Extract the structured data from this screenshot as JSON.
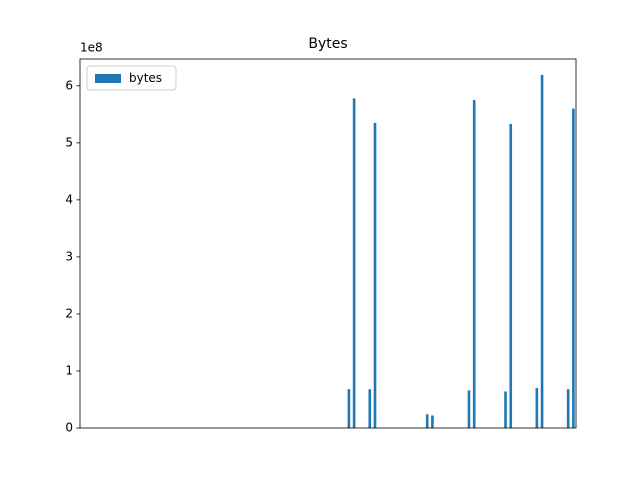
{
  "chart_data": {
    "type": "bar",
    "title": "Bytes",
    "categories": [
      null,
      null,
      null,
      null,
      null,
      null,
      null,
      null,
      null,
      null,
      null,
      null,
      null,
      null,
      null,
      null,
      null,
      null,
      null,
      null,
      null,
      null,
      null,
      null,
      null,
      null,
      null,
      null,
      null,
      null,
      null,
      null,
      null,
      null,
      null,
      null,
      null,
      null,
      null,
      null,
      null,
      null,
      null,
      null,
      null,
      null,
      null,
      null,
      null,
      null,
      null,
      null,
      null,
      null,
      null,
      null,
      null,
      null,
      null,
      null,
      null,
      null,
      null,
      null,
      null,
      null,
      null,
      null,
      null,
      null,
      null,
      null,
      null,
      null,
      null,
      null,
      null,
      null,
      null,
      null,
      null,
      null,
      null,
      null,
      null,
      null,
      null,
      null,
      null,
      null,
      null,
      null,
      null,
      null,
      null
    ],
    "series": [
      {
        "name": "bytes",
        "color": "#1f77b4",
        "values": [
          0,
          0,
          0,
          0,
          0,
          0,
          0,
          0,
          0,
          0,
          0,
          0,
          0,
          0,
          0,
          0,
          0,
          0,
          0,
          0,
          0,
          0,
          0,
          0,
          0,
          0,
          0,
          0,
          0,
          0,
          0,
          0,
          0,
          0,
          0,
          0,
          0,
          0,
          0,
          0,
          0,
          0,
          0,
          0,
          0,
          0,
          0,
          0,
          0,
          0,
          0,
          68000000,
          578000000,
          0,
          0,
          68000000,
          535000000,
          0,
          0,
          0,
          0,
          0,
          0,
          0,
          0,
          0,
          24000000,
          22000000,
          0,
          0,
          0,
          0,
          0,
          0,
          66000000,
          575000000,
          0,
          0,
          0,
          0,
          0,
          64000000,
          533000000,
          0,
          0,
          0,
          0,
          70000000,
          619000000,
          0,
          0,
          0,
          0,
          68000000,
          560000000
        ]
      }
    ],
    "ylim": [
      0,
      647000000
    ],
    "yticks": [
      0,
      {
        "value": 100000000,
        "label": "1"
      },
      {
        "value": 200000000,
        "label": "2"
      },
      {
        "value": 300000000,
        "label": "3"
      },
      {
        "value": 400000000,
        "label": "4"
      },
      {
        "value": 500000000,
        "label": "5"
      },
      {
        "value": 600000000,
        "label": "6"
      }
    ],
    "y_offset_label": "1e8",
    "legend": "upper left"
  }
}
